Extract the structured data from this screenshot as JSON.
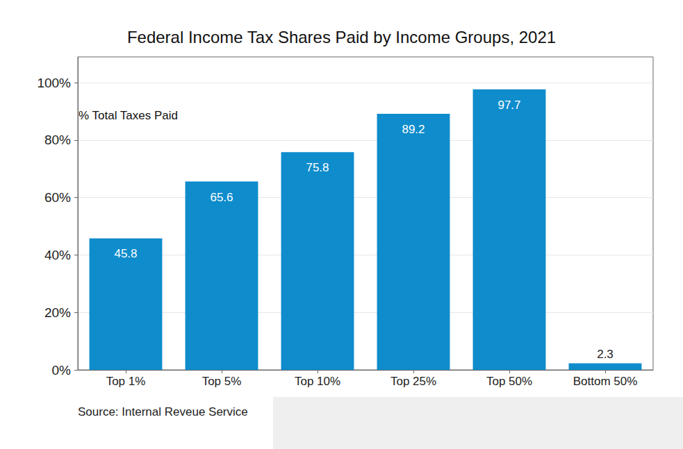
{
  "chart_data": {
    "type": "bar",
    "title": "Federal Income Tax Shares Paid by Income Groups, 2021",
    "annotations": [
      "% Total Taxes Paid",
      "Source: Internal Reveue Service"
    ],
    "categories": [
      "Top 1%",
      "Top 5%",
      "Top 10%",
      "Top 25%",
      "Top 50%",
      "Bottom 50%"
    ],
    "values": [
      45.8,
      65.6,
      75.8,
      89.2,
      97.7,
      2.3
    ],
    "color": "#0e8ccc",
    "ylim": [
      0,
      109
    ],
    "yticks": [
      {
        "value": 0,
        "label": "0%"
      },
      {
        "value": 20,
        "label": "20%"
      },
      {
        "value": 40,
        "label": "40%"
      },
      {
        "value": 60,
        "label": "60%"
      },
      {
        "value": 80,
        "label": "80%"
      },
      {
        "value": 100,
        "label": "100%"
      }
    ],
    "grid": true,
    "data_labels": true
  }
}
